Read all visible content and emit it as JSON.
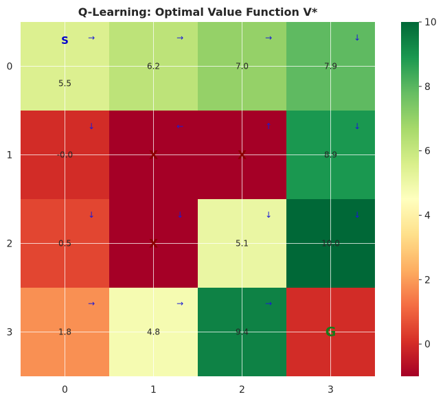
{
  "chart_data": {
    "type": "heatmap",
    "title": "Q-Learning: Optimal Value Function V*",
    "x_ticks": [
      "0",
      "1",
      "2",
      "3"
    ],
    "y_ticks": [
      "0",
      "1",
      "2",
      "3"
    ],
    "colormap": "RdYlGn",
    "vmin": -1,
    "vmax": 10,
    "colorbar_ticks": [
      "10",
      "8",
      "6",
      "4",
      "2",
      "0"
    ],
    "colorbar_tick_values": [
      10,
      8,
      6,
      4,
      2,
      0
    ],
    "grid": true,
    "cells": [
      [
        {
          "value": 5.5,
          "label": "5.5",
          "arrow": "→",
          "marker": "S"
        },
        {
          "value": 6.2,
          "label": "6.2",
          "arrow": "→"
        },
        {
          "value": 7.0,
          "label": "7.0",
          "arrow": "→"
        },
        {
          "value": 7.9,
          "label": "7.9",
          "arrow": "↓"
        }
      ],
      [
        {
          "value": 0.0,
          "label": "-0.0",
          "arrow": "↓"
        },
        {
          "value": -1,
          "label": "",
          "arrow": "←",
          "marker": "X"
        },
        {
          "value": -1,
          "label": "",
          "arrow": "↑",
          "marker": "X"
        },
        {
          "value": 8.9,
          "label": "8.9",
          "arrow": "↓"
        }
      ],
      [
        {
          "value": 0.5,
          "label": "0.5",
          "arrow": "↓"
        },
        {
          "value": -1,
          "label": "",
          "arrow": "↓",
          "marker": "X"
        },
        {
          "value": 5.1,
          "label": "5.1",
          "arrow": "↓"
        },
        {
          "value": 10.0,
          "label": "10.0",
          "arrow": "↓"
        }
      ],
      [
        {
          "value": 1.8,
          "label": "1.8",
          "arrow": "→"
        },
        {
          "value": 4.8,
          "label": "4.8",
          "arrow": "→"
        },
        {
          "value": 9.4,
          "label": "9.4",
          "arrow": "→"
        },
        {
          "value": 0.0,
          "label": "",
          "arrow": "",
          "marker": "G"
        }
      ]
    ],
    "marker_colors": {
      "S": "#0000cc",
      "G": "#1a7a1a",
      "X": "#8b0000"
    }
  }
}
